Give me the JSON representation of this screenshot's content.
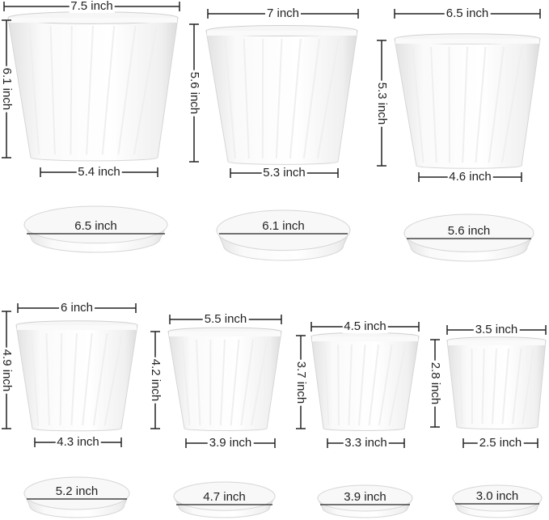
{
  "pots": [
    {
      "top_width": "7.5 inch",
      "height": "6.1 inch",
      "bottom_width": "5.4 inch",
      "saucer": "6.5 inch"
    },
    {
      "top_width": "7 inch",
      "height": "5.6 inch",
      "bottom_width": "5.3 inch",
      "saucer": "6.1 inch"
    },
    {
      "top_width": "6.5 inch",
      "height": "5.3 inch",
      "bottom_width": "4.6 inch",
      "saucer": "5.6 inch"
    },
    {
      "top_width": "6 inch",
      "height": "4.9 inch",
      "bottom_width": "4.3 inch",
      "saucer": "5.2 inch"
    },
    {
      "top_width": "5.5 inch",
      "height": "4.2 inch",
      "bottom_width": "3.9 inch",
      "saucer": "4.7 inch"
    },
    {
      "top_width": "4.5 inch",
      "height": "3.7 inch",
      "bottom_width": "3.3 inch",
      "saucer": "3.9 inch"
    },
    {
      "top_width": "3.5 inch",
      "height": "2.8 inch",
      "bottom_width": "2.5 inch",
      "saucer": "3.0 inch"
    }
  ],
  "colors": {
    "pot": "#ffffff",
    "shade": "#e4e4e4",
    "line": "#222222"
  }
}
